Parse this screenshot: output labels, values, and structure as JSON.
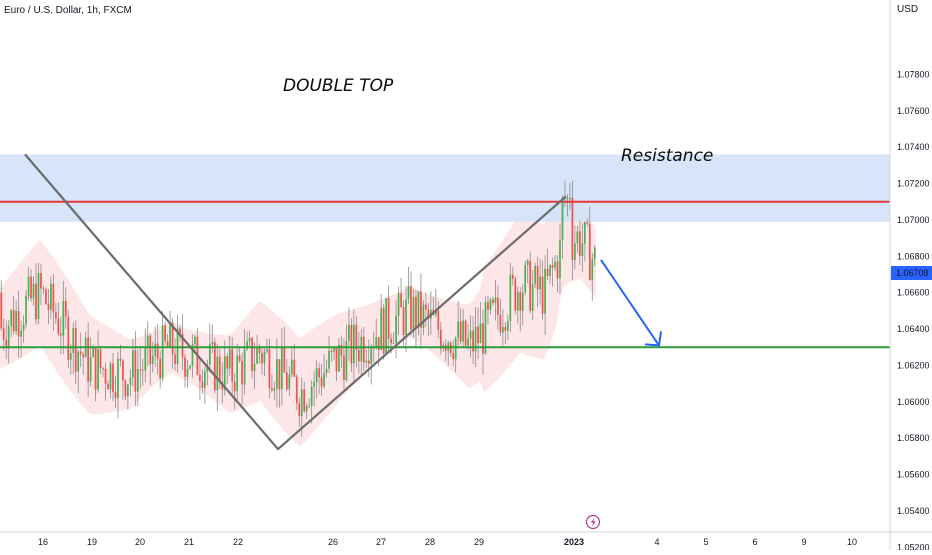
{
  "header": {
    "symbol_title": "Euro / U.S. Dollar, 1h, FXCM",
    "currency": "USD"
  },
  "colors": {
    "up": "#26a69a",
    "up_body": "#4caf50",
    "down": "#ef5350",
    "resistance_line": "#e53935",
    "support_line": "#2e9c3a",
    "resistance_zone": "#cfe0f8",
    "band": "#fde3e6",
    "pattern_line": "#6b6b6b",
    "arrow": "#2962ff",
    "price_badge": "#2962ff",
    "grid": "#f0f3fa"
  },
  "chart_data": {
    "type": "candlestick",
    "title": "Euro / U.S. Dollar, 1h, FXCM",
    "ylabel": "USD",
    "ylim": [
      1.051,
      1.081
    ],
    "y_ticks": [
      "1.07800",
      "1.07600",
      "1.07400",
      "1.07200",
      "1.07000",
      "1.06800",
      "1.06600",
      "1.06400",
      "1.06200",
      "1.06000",
      "1.05800",
      "1.05600",
      "1.05400",
      "1.05200"
    ],
    "x_ticks": [
      "16",
      "19",
      "20",
      "21",
      "22",
      "26",
      "27",
      "28",
      "29",
      "2023",
      "4",
      "5",
      "6",
      "9",
      "10"
    ],
    "last_price": "1.06708",
    "annotations": {
      "pattern_label": "DOUBLE TOP",
      "zone_label": "Resistance"
    },
    "levels": {
      "resistance": 1.071,
      "support": 1.063,
      "resistance_zone": [
        1.0699,
        1.0736
      ]
    },
    "pattern_path": [
      {
        "date": "16",
        "price": 1.0736
      },
      {
        "date": "22",
        "price": 1.0574
      },
      {
        "date": "2023",
        "price": 1.0713
      }
    ],
    "projection_arrow": {
      "from": 1.0678,
      "to": 1.0631
    }
  }
}
